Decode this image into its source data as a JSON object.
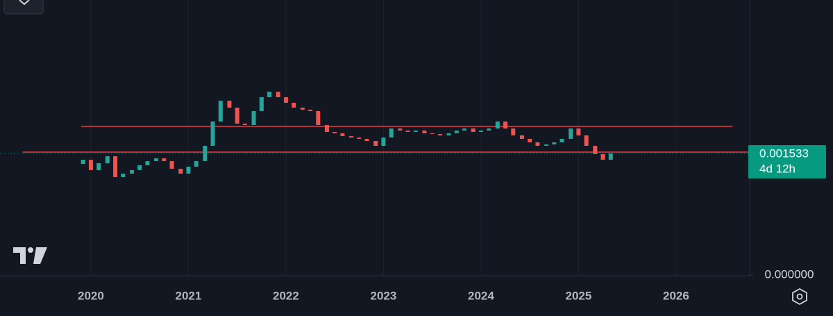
{
  "chart_data": {
    "type": "candlestick",
    "x": [
      2019.92,
      2020.0,
      2020.08,
      2020.17,
      2020.25,
      2020.33,
      2020.42,
      2020.5,
      2020.58,
      2020.67,
      2020.75,
      2020.83,
      2020.92,
      2021.0,
      2021.08,
      2021.17,
      2021.25,
      2021.33,
      2021.42,
      2021.5,
      2021.58,
      2021.67,
      2021.75,
      2021.83,
      2021.92,
      2022.0,
      2022.08,
      2022.17,
      2022.25,
      2022.33,
      2022.42,
      2022.5,
      2022.58,
      2022.67,
      2022.75,
      2022.83,
      2022.92,
      2023.0,
      2023.08,
      2023.17,
      2023.25,
      2023.33,
      2023.42,
      2023.5,
      2023.58,
      2023.67,
      2023.75,
      2023.83,
      2023.92,
      2024.0,
      2024.08,
      2024.17,
      2024.25,
      2024.33,
      2024.42,
      2024.5,
      2024.58,
      2024.67,
      2024.75,
      2024.83,
      2024.92,
      2025.0,
      2025.08,
      2025.17,
      2025.25,
      2025.33
    ],
    "open": [
      0.0014,
      0.001454,
      0.001323,
      0.00141,
      0.001498,
      0.001235,
      0.001279,
      0.001323,
      0.001384,
      0.001436,
      0.001472,
      0.001436,
      0.00134,
      0.001279,
      0.001366,
      0.001436,
      0.001629,
      0.001936,
      0.002198,
      0.002111,
      0.001909,
      0.001892,
      0.002067,
      0.002242,
      0.002312,
      0.002242,
      0.002172,
      0.002111,
      0.002085,
      0.002067,
      0.001892,
      0.001804,
      0.001787,
      0.001752,
      0.001734,
      0.001717,
      0.00169,
      0.001629,
      0.001734,
      0.001848,
      0.001822,
      0.001804,
      0.001822,
      0.001787,
      0.001778,
      0.001761,
      0.001787,
      0.001822,
      0.001848,
      0.001804,
      0.001822,
      0.001848,
      0.001936,
      0.001848,
      0.001761,
      0.001717,
      0.001673,
      0.001629,
      0.001647,
      0.001673,
      0.001717,
      0.001848,
      0.001761,
      0.001629,
      0.001524,
      0.001454
    ],
    "close": [
      0.001454,
      0.001323,
      0.00141,
      0.001498,
      0.001235,
      0.001279,
      0.001323,
      0.001384,
      0.001436,
      0.001472,
      0.001436,
      0.00134,
      0.001279,
      0.001366,
      0.001436,
      0.001629,
      0.001936,
      0.002198,
      0.002111,
      0.001909,
      0.001892,
      0.002067,
      0.002242,
      0.002312,
      0.002242,
      0.002172,
      0.002111,
      0.002085,
      0.002067,
      0.001892,
      0.001804,
      0.001787,
      0.001752,
      0.001734,
      0.001717,
      0.00169,
      0.001629,
      0.001734,
      0.001848,
      0.001822,
      0.001804,
      0.001822,
      0.001787,
      0.001778,
      0.001761,
      0.001787,
      0.001822,
      0.001848,
      0.001804,
      0.001822,
      0.001848,
      0.001936,
      0.001848,
      0.001761,
      0.001717,
      0.001673,
      0.001629,
      0.001647,
      0.001673,
      0.001717,
      0.001848,
      0.001761,
      0.001629,
      0.001524,
      0.001454,
      0.001533
    ],
    "up_color": "#26a69a",
    "down_color": "#ef5350",
    "xlim": [
      2019.068,
      2026.755
    ],
    "xticks": [
      2020,
      2021,
      2022,
      2023,
      2024,
      2025,
      2026
    ],
    "ylim": [
      0,
      0.003468
    ],
    "yticks": [
      {
        "value": 0,
        "label": "0.000000"
      }
    ],
    "hlines": [
      {
        "value": 0.001874,
        "x": [
          2019.9,
          2026.58
        ],
        "color": "#f23645"
      },
      {
        "value": 0.00155,
        "x": [
          2019.3,
          2026.755
        ],
        "color": "#f23645"
      }
    ],
    "price_label": {
      "value": 0.001533,
      "countdown": "4d 12h",
      "color": "#089981"
    },
    "grid": true
  }
}
